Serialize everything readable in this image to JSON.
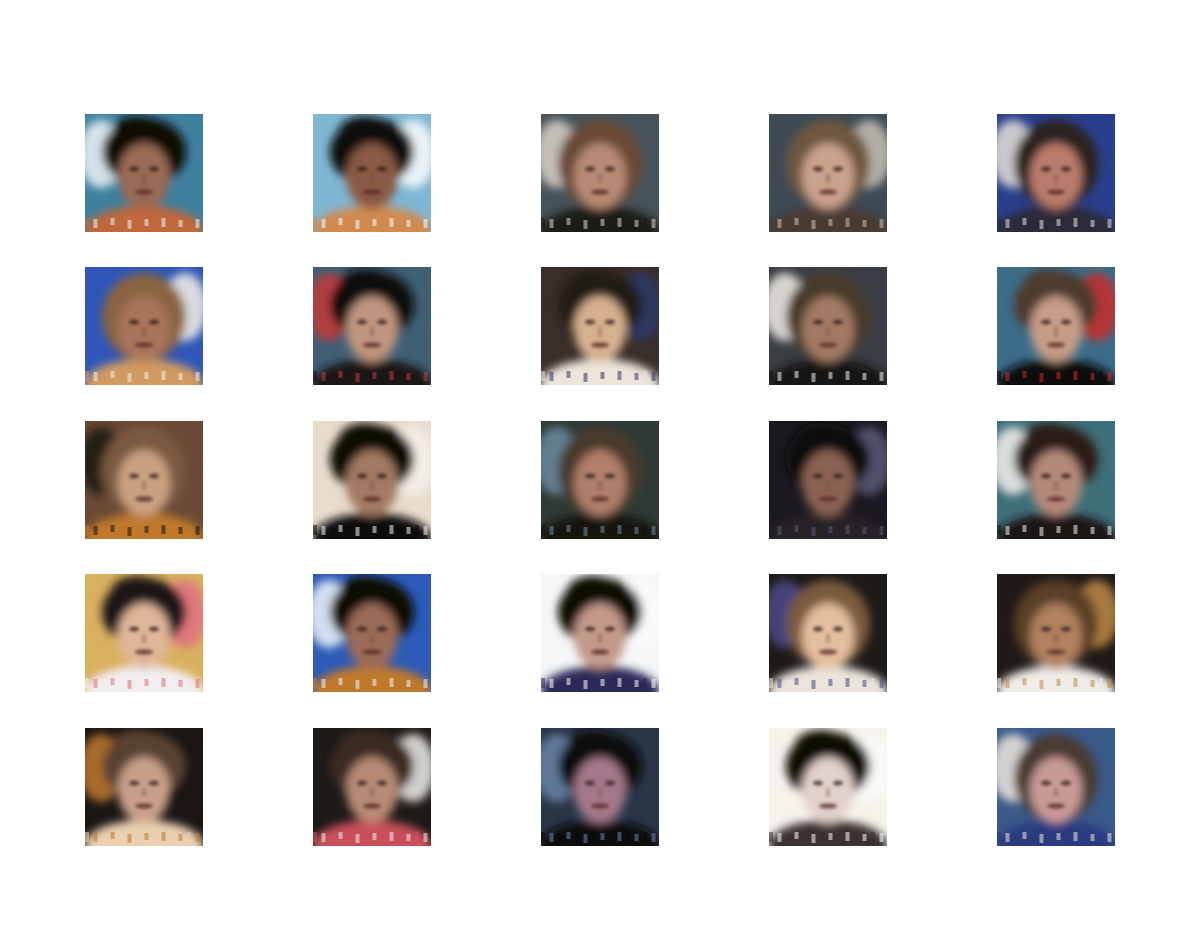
{
  "figure": {
    "rows": 5,
    "columns": 5,
    "background": "#ffffff",
    "samples": [
      {
        "row": 1,
        "col": 1,
        "bg": "#3f7f9f",
        "hair": "#0a0706",
        "skin": "#9a6a55",
        "shirt": "#c0683a",
        "accent": "#eef3f6",
        "hairTop": true
      },
      {
        "row": 1,
        "col": 2,
        "bg": "#7fb6d2",
        "hair": "#0c0908",
        "skin": "#8a5a45",
        "shirt": "#d08a50",
        "accent": "#fbfdfe",
        "hairTop": true
      },
      {
        "row": 1,
        "col": 3,
        "bg": "#47535a",
        "hair": "#6a4a35",
        "skin": "#b88a74",
        "shirt": "#1e1a18",
        "accent": "#d8d0c8",
        "hairTop": false
      },
      {
        "row": 1,
        "col": 4,
        "bg": "#3e4a55",
        "hair": "#6f5640",
        "skin": "#c9a28c",
        "shirt": "#4a3a30",
        "accent": "#c8c0b5",
        "hairTop": false
      },
      {
        "row": 1,
        "col": 5,
        "bg": "#2a3f8c",
        "hair": "#2a211c",
        "skin": "#b97b6c",
        "shirt": "#2a2a38",
        "accent": "#e6e0d8",
        "hairTop": false
      },
      {
        "row": 2,
        "col": 1,
        "bg": "#2f56b8",
        "hair": "#8a6440",
        "skin": "#a8745a",
        "shirt": "#d09a60",
        "accent": "#f6f1e8",
        "hairTop": false
      },
      {
        "row": 2,
        "col": 2,
        "bg": "#3f5f75",
        "hair": "#100c0a",
        "skin": "#bf957e",
        "shirt": "#1a1614",
        "accent": "#c43a3a",
        "hairTop": true
      },
      {
        "row": 2,
        "col": 3,
        "bg": "#3a2e2a",
        "hair": "#241a14",
        "skin": "#d7b08e",
        "shirt": "#ede5dc",
        "accent": "#2a3a6a",
        "hairTop": true
      },
      {
        "row": 2,
        "col": 4,
        "bg": "#3a3e44",
        "hair": "#4a3a2c",
        "skin": "#a27a64",
        "shirt": "#181412",
        "accent": "#f2eee8",
        "hairTop": false
      },
      {
        "row": 2,
        "col": 5,
        "bg": "#3b6c88",
        "hair": "#4e3a2e",
        "skin": "#c59c88",
        "shirt": "#0e0c0c",
        "accent": "#cc2a2a",
        "hairTop": true
      },
      {
        "row": 3,
        "col": 1,
        "bg": "#6a4a35",
        "hair": "#7a5a40",
        "skin": "#caa180",
        "shirt": "#c0782a",
        "accent": "#1a1412",
        "hairTop": false
      },
      {
        "row": 3,
        "col": 2,
        "bg": "#e8dccc",
        "hair": "#0a0706",
        "skin": "#a27a64",
        "shirt": "#0c0a08",
        "accent": "#f4f0ea",
        "hairTop": true
      },
      {
        "row": 3,
        "col": 3,
        "bg": "#2f3a36",
        "hair": "#4a3a2c",
        "skin": "#b07e69",
        "shirt": "#141210",
        "accent": "#6a8aa0",
        "hairTop": false
      },
      {
        "row": 3,
        "col": 4,
        "bg": "#1c1820",
        "hair": "#100c0c",
        "skin": "#8a6252",
        "shirt": "#262028",
        "accent": "#5a5a7a",
        "hairTop": true
      },
      {
        "row": 3,
        "col": 5,
        "bg": "#3f6f78",
        "hair": "#2a1e18",
        "skin": "#b38a7a",
        "shirt": "#1a1614",
        "accent": "#f3f0ec",
        "hairTop": true
      },
      {
        "row": 4,
        "col": 1,
        "bg": "#d8b060",
        "hair": "#1a1412",
        "skin": "#e0b69a",
        "shirt": "#f2eef0",
        "accent": "#e07080",
        "hairTop": true
      },
      {
        "row": 4,
        "col": 2,
        "bg": "#2d5ab8",
        "hair": "#0a0706",
        "skin": "#9b6b58",
        "shirt": "#c0782a",
        "accent": "#eef4fa",
        "hairTop": true
      },
      {
        "row": 4,
        "col": 3,
        "bg": "#f4f6f8",
        "hair": "#0a0706",
        "skin": "#c39a8a",
        "shirt": "#2a2a58",
        "accent": "#fafbfc",
        "hairTop": true
      },
      {
        "row": 4,
        "col": 4,
        "bg": "#1e1a18",
        "hair": "#7a5a3c",
        "skin": "#e4bf9e",
        "shirt": "#eae4dc",
        "accent": "#4a4a8a",
        "hairTop": false
      },
      {
        "row": 4,
        "col": 5,
        "bg": "#201a16",
        "hair": "#5a4028",
        "skin": "#b0805e",
        "shirt": "#f0ece8",
        "accent": "#c08a48",
        "hairTop": false
      },
      {
        "row": 5,
        "col": 1,
        "bg": "#1a1614",
        "hair": "#5a4230",
        "skin": "#c8a08a",
        "shirt": "#e8d0b0",
        "accent": "#c07a30",
        "hairTop": true
      },
      {
        "row": 5,
        "col": 2,
        "bg": "#1e1a18",
        "hair": "#3a2c24",
        "skin": "#b78a76",
        "shirt": "#c8505a",
        "accent": "#f0eeec",
        "hairTop": true
      },
      {
        "row": 5,
        "col": 3,
        "bg": "#2a3648",
        "hair": "#0c0a08",
        "skin": "#a4788a",
        "shirt": "#0a0808",
        "accent": "#6a82a8",
        "hairTop": true
      },
      {
        "row": 5,
        "col": 4,
        "bg": "#f6f2ec",
        "hair": "#0a0706",
        "skin": "#e2d2cc",
        "shirt": "#3a3030",
        "accent": "#fbfaf8",
        "hairTop": true
      },
      {
        "row": 5,
        "col": 5,
        "bg": "#3a5a8a",
        "hair": "#4a3a30",
        "skin": "#c89a96",
        "shirt": "#2a3a80",
        "accent": "#efe6dc",
        "hairTop": false
      }
    ]
  }
}
